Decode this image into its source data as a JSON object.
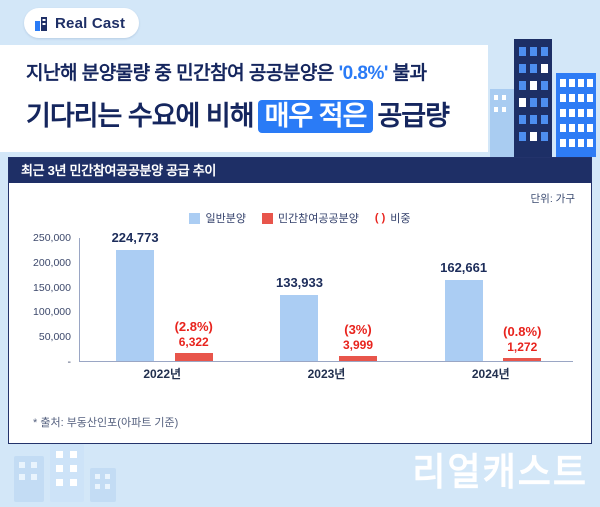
{
  "page": {
    "bg": "#d3e7f8",
    "accent_blue": "#2a7bf6",
    "navy": "#15265e",
    "red_text": "#e8231d"
  },
  "logo": {
    "text": "Real Cast"
  },
  "headline": {
    "line1_pre": "지난해 분양물량 중 민간참여 공공분양은 ",
    "line1_highlight": "'0.8%'",
    "line1_post": " 불과",
    "line2_pre": "기다리는 수요에 비해",
    "line2_highlight": "매우 적은",
    "line2_post": "공급량"
  },
  "chart_card": {
    "title": "최근 3년 민간참여공공분양 공급 추이",
    "unit": "단위: 가구",
    "legend": {
      "item1": "일반분양",
      "item2": "민간참여공공분양",
      "item3_paren": "( )",
      "item3_label": "비중"
    },
    "footnote": "* 출처: 부동산인포(아파트 기준)"
  },
  "chart_data": {
    "type": "bar",
    "title": "최근 3년 민간참여공공분양 공급 추이",
    "xlabel": "",
    "ylabel": "가구",
    "ylim": [
      0,
      250000
    ],
    "grid": false,
    "legend_position": "top",
    "categories": [
      "2022년",
      "2023년",
      "2024년"
    ],
    "yticks": [
      "250,000",
      "200,000",
      "150,000",
      "100,000",
      "50,000",
      "-"
    ],
    "series": [
      {
        "name": "일반분양",
        "values": [
          224773,
          133933,
          162661
        ],
        "labels": [
          "224,773",
          "133,933",
          "162,661"
        ],
        "color": "#abcdf3"
      },
      {
        "name": "민간참여공공분양",
        "values": [
          6322,
          3999,
          1272
        ],
        "labels": [
          "6,322",
          "3,999",
          "1,272"
        ],
        "ratios": [
          "(2.8%)",
          "(3%)",
          "(0.8%)"
        ],
        "color": "#e8554b"
      }
    ]
  },
  "footer": {
    "logo": "리얼캐스트"
  }
}
